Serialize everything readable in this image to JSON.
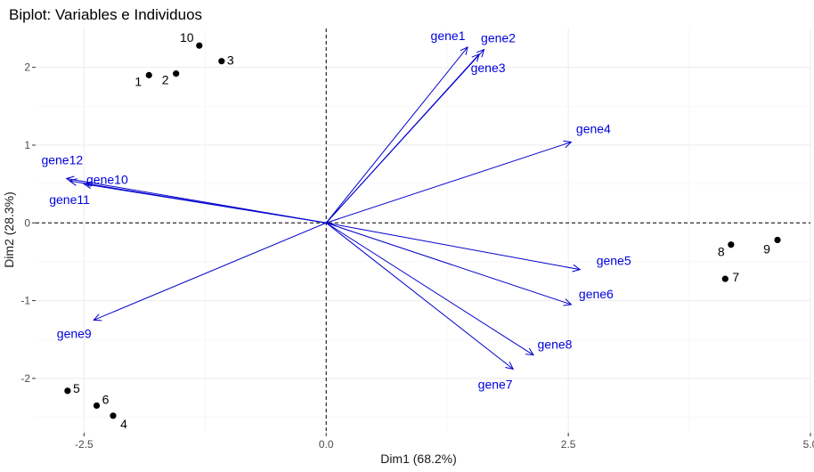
{
  "chart_data": {
    "type": "scatter",
    "title": "Biplot: Variables e Individuos",
    "xlabel": "Dim1 (68.2%)",
    "ylabel": "Dim2 (28.3%)",
    "xlim": [
      -3.0,
      5.0
    ],
    "ylim": [
      -2.7,
      2.5
    ],
    "x_ticks": [
      -2.5,
      0.0,
      2.5,
      5.0
    ],
    "x_tick_labels": [
      "-2.5",
      "0.0",
      "2.5",
      "5.0"
    ],
    "y_ticks": [
      -2,
      -1,
      0,
      1,
      2
    ],
    "y_tick_labels": [
      "-2",
      "-1",
      "0",
      "1",
      "2"
    ],
    "grid": true,
    "reference_lines": {
      "x": 0,
      "y": 0,
      "style": "dashed"
    },
    "colors": {
      "variables": "#0000cc",
      "individuals": "#000000"
    },
    "individuals": [
      {
        "label": "1",
        "x": -1.83,
        "y": 1.9
      },
      {
        "label": "2",
        "x": -1.55,
        "y": 1.92
      },
      {
        "label": "3",
        "x": -1.08,
        "y": 2.08
      },
      {
        "label": "10",
        "x": -1.31,
        "y": 2.28
      },
      {
        "label": "4",
        "x": -2.2,
        "y": -2.48
      },
      {
        "label": "5",
        "x": -2.67,
        "y": -2.16
      },
      {
        "label": "6",
        "x": -2.37,
        "y": -2.35
      },
      {
        "label": "7",
        "x": 4.12,
        "y": -0.72
      },
      {
        "label": "8",
        "x": 4.18,
        "y": -0.28
      },
      {
        "label": "9",
        "x": 4.66,
        "y": -0.22
      }
    ],
    "variables": [
      {
        "name": "gene1",
        "x": 1.46,
        "y": 2.26
      },
      {
        "name": "gene2",
        "x": 1.63,
        "y": 2.23
      },
      {
        "name": "gene3",
        "x": 1.58,
        "y": 2.17
      },
      {
        "name": "gene4",
        "x": 2.53,
        "y": 1.04
      },
      {
        "name": "gene5",
        "x": 2.62,
        "y": -0.6
      },
      {
        "name": "gene6",
        "x": 2.53,
        "y": -1.05
      },
      {
        "name": "gene7",
        "x": 1.93,
        "y": -1.88
      },
      {
        "name": "gene8",
        "x": 2.14,
        "y": -1.7
      },
      {
        "name": "gene9",
        "x": -2.4,
        "y": -1.25
      },
      {
        "name": "gene10",
        "x": -2.5,
        "y": 0.5
      },
      {
        "name": "gene11",
        "x": -2.65,
        "y": 0.54
      },
      {
        "name": "gene12",
        "x": -2.68,
        "y": 0.57
      }
    ]
  }
}
